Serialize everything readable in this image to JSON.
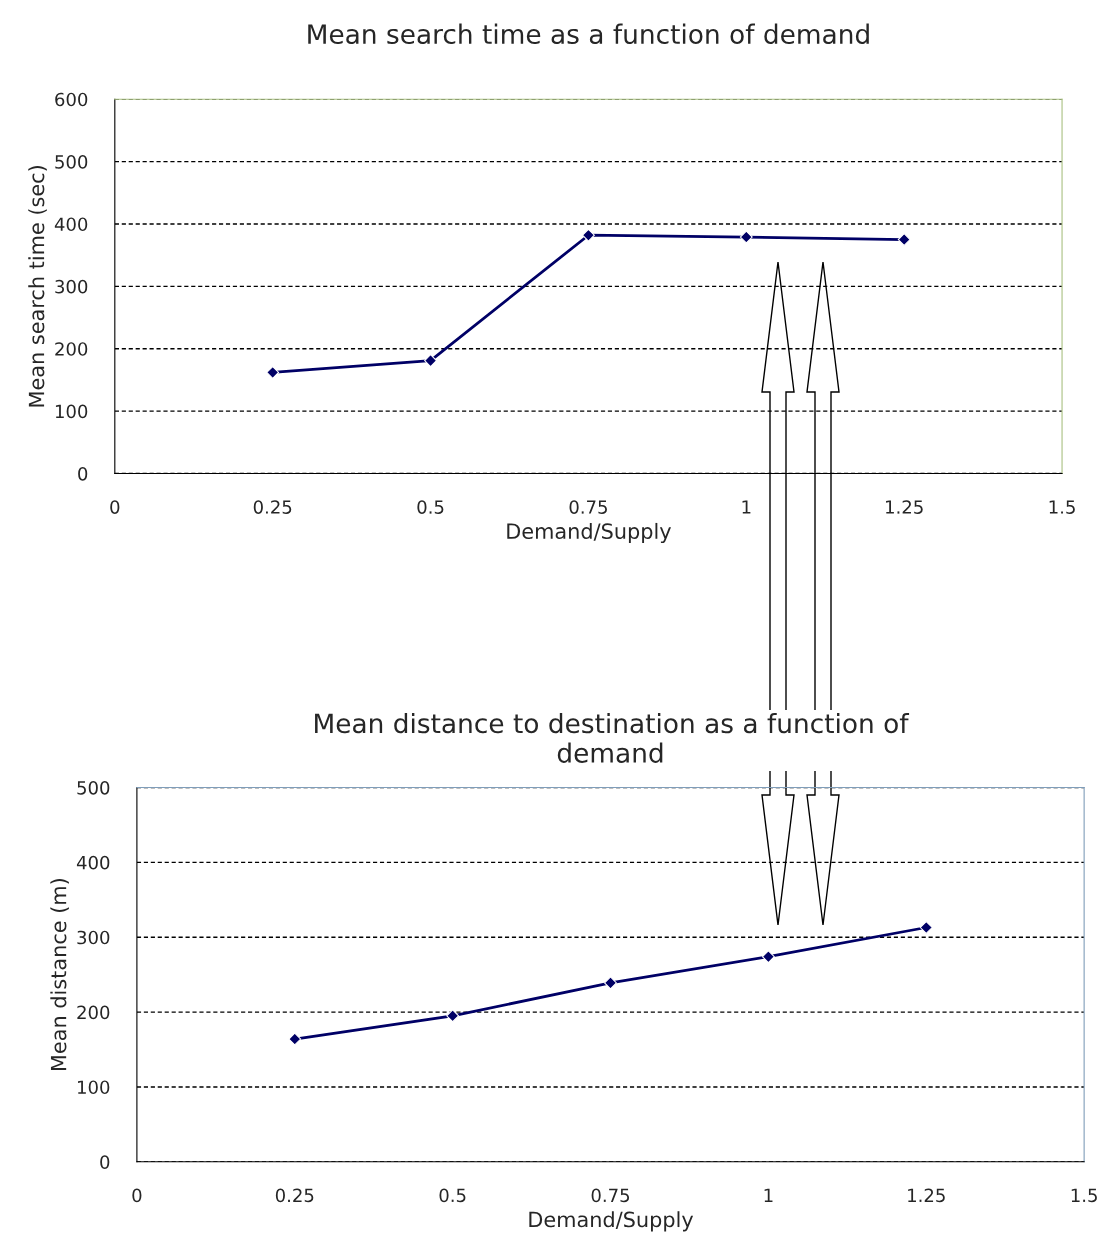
{
  "chart_data": [
    {
      "type": "line",
      "title": "Mean search time as a function of demand",
      "xlabel": "Demand/Supply",
      "ylabel": "Mean search time (sec)",
      "x": [
        0.25,
        0.5,
        0.75,
        1,
        1.25
      ],
      "series": [
        {
          "color": "#000066",
          "values": [
            162,
            181,
            382,
            379,
            375
          ]
        }
      ],
      "xlim": [
        0,
        1.5
      ],
      "xticks": [
        0,
        0.25,
        0.5,
        0.75,
        1,
        1.25,
        1.5
      ],
      "ylim": [
        0,
        600
      ],
      "yticks": [
        0,
        100,
        200,
        300,
        400,
        500,
        600
      ],
      "grid": "y",
      "marker": "diamond",
      "line_style": "solid"
    },
    {
      "type": "line",
      "title": "Mean distance to destination as a function of\ndemand",
      "xlabel": "Demand/Supply",
      "ylabel": "Mean distance (m)",
      "x": [
        0.25,
        0.5,
        0.75,
        1,
        1.25
      ],
      "series": [
        {
          "color": "#000066",
          "values": [
            164,
            195,
            239,
            274,
            313
          ]
        }
      ],
      "xlim": [
        0,
        1.5
      ],
      "xticks": [
        0,
        0.25,
        0.5,
        0.75,
        1,
        1.25,
        1.5
      ],
      "ylim": [
        0,
        500
      ],
      "yticks": [
        0,
        100,
        200,
        300,
        400,
        500
      ],
      "grid": "y",
      "marker": "diamond",
      "line_style": "solid"
    }
  ]
}
